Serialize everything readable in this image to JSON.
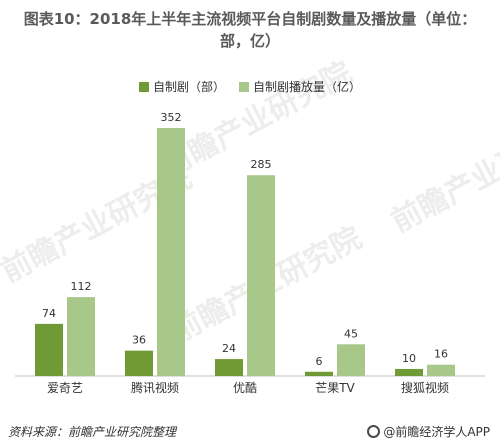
{
  "title_line1": "图表10：2018年上半年主流视频平台自制剧数量及播放量（单位：",
  "title_line2": "部，亿）",
  "legend": [
    "自制剧（部）",
    "自制剧播放量（亿）"
  ],
  "colors": {
    "series1": "#6f9a35",
    "series2": "#a8c88a",
    "axis": "#bfbfbf"
  },
  "watermark": "前瞻产业研究院",
  "source_label": "资料来源：前瞻产业研究院整理",
  "brand": "@前瞻经济学人APP",
  "chart_data": {
    "type": "bar",
    "categories": [
      "爱奇艺",
      "腾讯视频",
      "优酷",
      "芒果TV",
      "搜狐视频"
    ],
    "series": [
      {
        "name": "自制剧（部）",
        "values": [
          74,
          36,
          24,
          6,
          10
        ]
      },
      {
        "name": "自制剧播放量（亿）",
        "values": [
          112,
          352,
          285,
          45,
          16
        ]
      }
    ],
    "title": "图表10：2018年上半年主流视频平台自制剧数量及播放量（单位：部，亿）",
    "xlabel": "",
    "ylabel": "",
    "ylim": [
      0,
      352
    ],
    "grid": false,
    "legend_position": "top-center"
  }
}
